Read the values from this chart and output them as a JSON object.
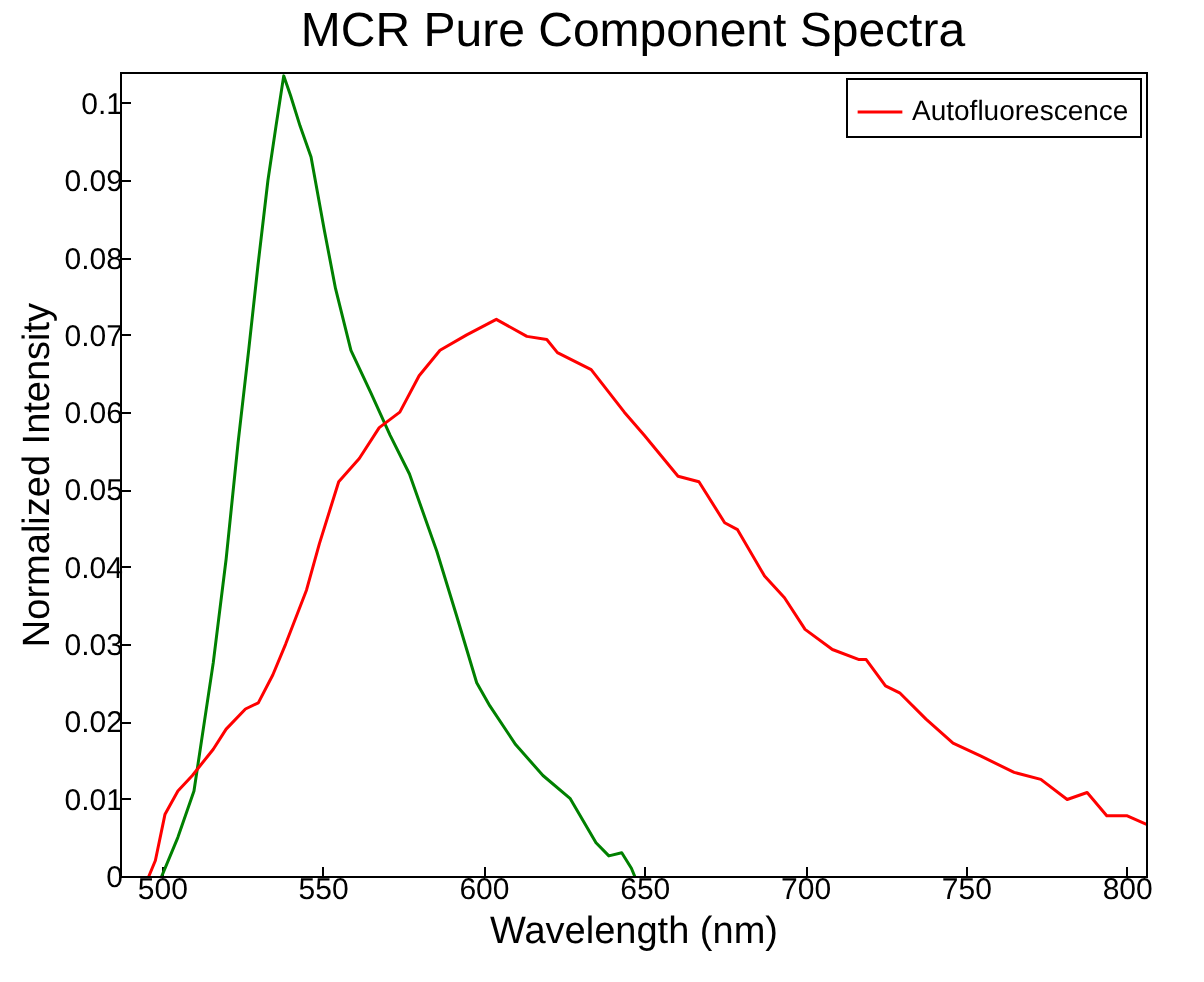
{
  "chart_data": {
    "type": "line",
    "title": "MCR Pure Component Spectra",
    "xlabel": "Wavelength (nm)",
    "ylabel": "Normalized Intensity",
    "xlim": [
      487,
      806
    ],
    "xticks": [
      500,
      550,
      600,
      650,
      700,
      750,
      800
    ],
    "ylim": [
      0,
      0.104
    ],
    "yticks": [
      0,
      0.01,
      0.02,
      0.03,
      0.04,
      0.05,
      0.06,
      0.07,
      0.08,
      0.09,
      0.1
    ],
    "legend": "top right",
    "grid": false,
    "marker": "none",
    "line_style": "solid",
    "series": [
      {
        "color": "#008000",
        "x": [
          500,
          505,
          510,
          516,
          520,
          523.7,
          527,
          529.9,
          533,
          535.5,
          537.9,
          540,
          543,
          546.4,
          550.5,
          554,
          558.8,
          565,
          571,
          577,
          585.5,
          591.7,
          597.9,
          602,
          610,
          618.5,
          627,
          635,
          639,
          643,
          646,
          647
        ],
        "values": [
          0,
          0.005,
          0.011,
          0.0276,
          0.041,
          0.056,
          0.068,
          0.079,
          0.09,
          0.097,
          0.1035,
          0.101,
          0.097,
          0.093,
          0.0836,
          0.076,
          0.068,
          0.0625,
          0.057,
          0.052,
          0.042,
          0.0336,
          0.025,
          0.022,
          0.017,
          0.013,
          0.01,
          0.0043,
          0.0026,
          0.003,
          0.001,
          0
        ]
      },
      {
        "name": "Autofluorescence",
        "color": "#ff0000",
        "x": [
          496,
          498,
          501,
          505,
          509.5,
          516,
          520,
          526,
          530,
          534.5,
          538.5,
          545,
          549,
          555,
          561.4,
          567.6,
          574,
          580,
          586.5,
          594.8,
          604,
          613.5,
          619.7,
          623,
          633.5,
          643.8,
          650,
          660.5,
          667,
          675,
          679,
          687.4,
          693.6,
          700,
          708.5,
          716.8,
          719,
          725,
          729.4,
          737.6,
          746,
          754.7,
          765,
          773.3,
          781.5,
          787.7,
          793.8,
          800,
          806
        ],
        "values": [
          0,
          0.002,
          0.008,
          0.011,
          0.013,
          0.0164,
          0.019,
          0.0216,
          0.0224,
          0.026,
          0.03,
          0.037,
          0.043,
          0.051,
          0.054,
          0.058,
          0.06,
          0.0647,
          0.068,
          0.07,
          0.072,
          0.0698,
          0.0694,
          0.0677,
          0.0655,
          0.06,
          0.057,
          0.0517,
          0.051,
          0.0457,
          0.0448,
          0.0388,
          0.036,
          0.0319,
          0.0293,
          0.028,
          0.028,
          0.0246,
          0.0237,
          0.0203,
          0.0172,
          0.0155,
          0.0134,
          0.0125,
          0.0099,
          0.0108,
          0.0078,
          0.0078,
          0.0067
        ]
      }
    ]
  }
}
